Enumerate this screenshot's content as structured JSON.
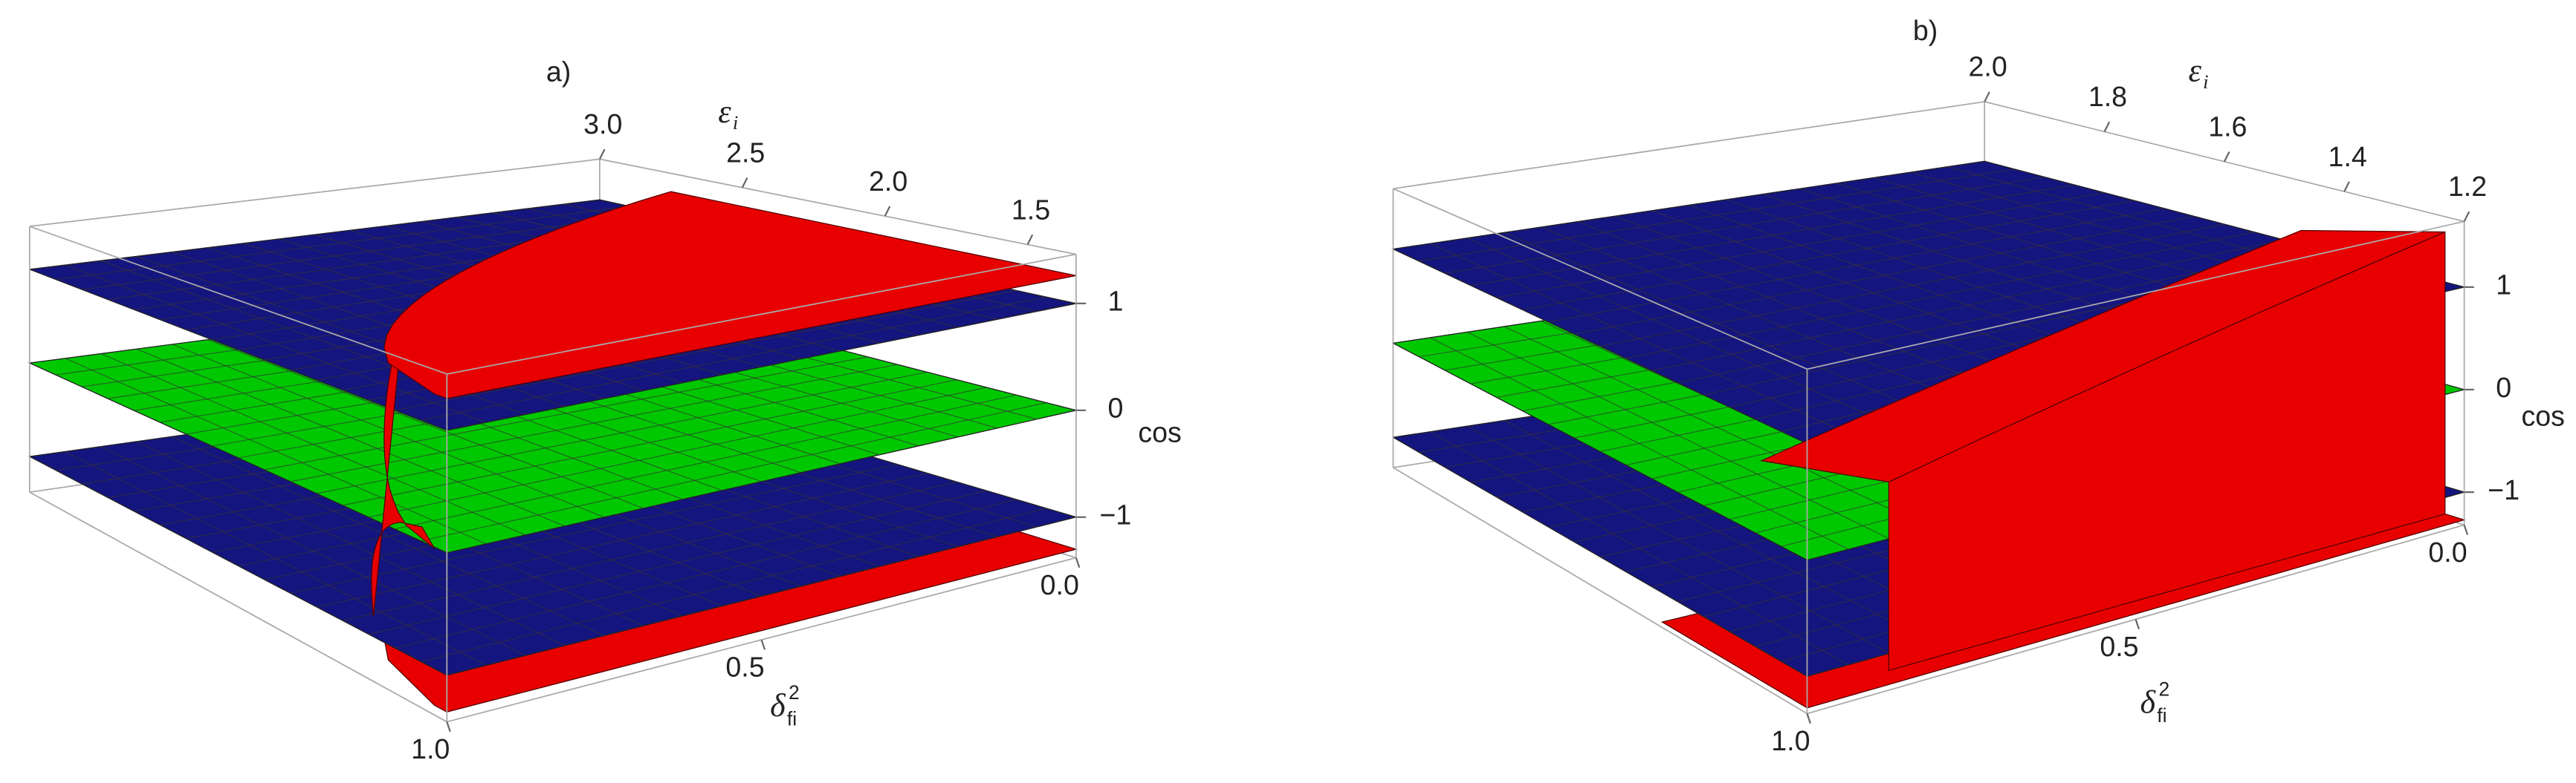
{
  "chart_data": [
    {
      "type": "surface3d",
      "title": "a)",
      "xlabel": {
        "base": "δ",
        "sup": "2",
        "sub": "fi"
      },
      "ylabel": {
        "base": "ε",
        "sub": "i"
      },
      "zlabel": "cos",
      "xlim": [
        0,
        1
      ],
      "xticks": [
        {
          "value": 0,
          "label": "0.0"
        },
        0.5,
        {
          "value": 1,
          "label": "1.0"
        }
      ],
      "ylim": [
        1.33,
        3.0
      ],
      "yticks": [
        {
          "value": 3,
          "label": "3.0"
        },
        2.5,
        {
          "value": 2,
          "label": "2.0"
        },
        1.5
      ],
      "zlim": [
        -1.38,
        1.46
      ],
      "zticks": [
        1,
        0,
        {
          "value": -1,
          "label": "−1"
        }
      ],
      "planes": [
        {
          "value": -1,
          "color": "#15157f"
        },
        {
          "value": 0,
          "color": "#00c800"
        },
        {
          "value": 1,
          "color": "#15157f"
        }
      ],
      "surface_color": "#e80000"
    },
    {
      "type": "surface3d",
      "title": "b)",
      "xlabel": {
        "base": "δ",
        "sup": "2",
        "sub": "fi"
      },
      "ylabel": {
        "base": "ε",
        "sub": "i"
      },
      "zlabel": "cos",
      "xlim": [
        0,
        1
      ],
      "xticks": [
        {
          "value": 0,
          "label": "0.0"
        },
        0.5,
        {
          "value": 1,
          "label": "1.0"
        }
      ],
      "ylim": [
        1.2,
        2.0
      ],
      "yticks": [
        {
          "value": 2,
          "label": "2.0"
        },
        1.8,
        1.6,
        1.4,
        1.2
      ],
      "zlim": [
        -1.32,
        1.64
      ],
      "zticks": [
        1,
        0,
        {
          "value": -1,
          "label": "−1"
        }
      ],
      "planes": [
        {
          "value": -1,
          "color": "#15157f"
        },
        {
          "value": 0,
          "color": "#00c800"
        },
        {
          "value": 1,
          "color": "#15157f"
        }
      ],
      "surface_color": "#e80000"
    }
  ]
}
